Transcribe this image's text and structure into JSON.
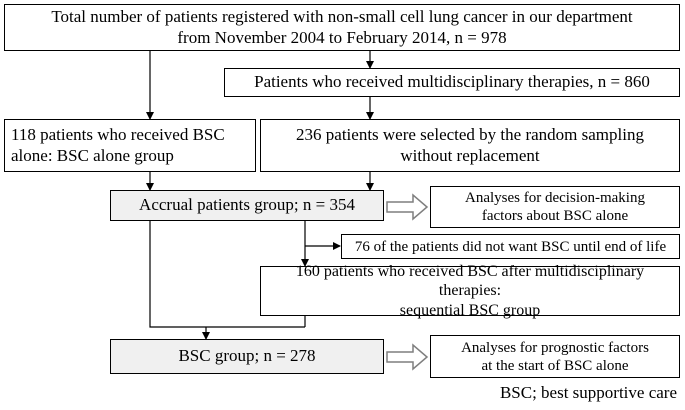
{
  "flowchart": {
    "total_box": "Total number of patients registered with non-small cell lung cancer in our department\nfrom November 2004 to February 2014, n = 978",
    "multidisciplinary_box": "Patients who received multidisciplinary therapies, n = 860",
    "bsc_alone_box": "118 patients who received BSC\nalone: BSC alone group",
    "random_sampling_box": "236 patients were selected by the random sampling\nwithout replacement",
    "accrual_box": "Accrual patients group; n = 354",
    "decision_analysis_box": "Analyses for decision-making\nfactors about BSC alone",
    "excluded_box": "76 of the patients did not want BSC until end of life",
    "sequential_box": "160 patients who received BSC after multidisciplinary therapies:\nsequential BSC group",
    "bsc_group_box": "BSC group; n = 278",
    "prognostic_analysis_box": "Analyses for prognostic factors\nat the start of BSC alone"
  },
  "legend": "BSC; best supportive care",
  "colors": {
    "line": "#000000",
    "shaded_box": "#f0f0f0",
    "hollow_arrow_stroke": "#7f7f7f"
  }
}
